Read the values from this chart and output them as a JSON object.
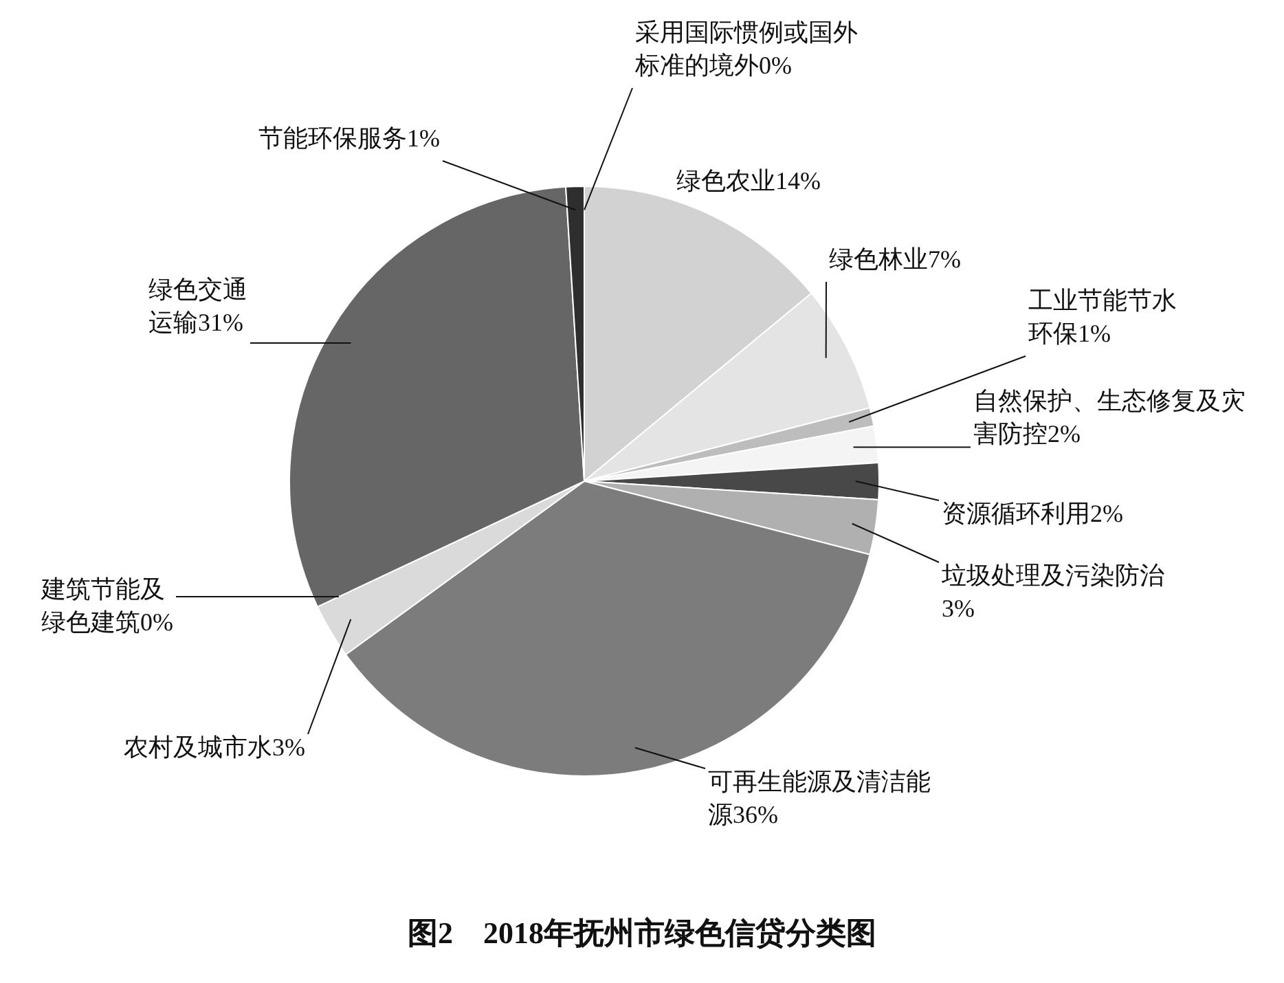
{
  "chart_data": {
    "type": "pie",
    "title": "图2　2018年抚州市绿色信贷分类图",
    "categories": [
      "采用国际惯例或国外标准的境外",
      "绿色农业",
      "绿色林业",
      "工业节能节水环保",
      "自然保护、生态修复及灾害防控",
      "资源循环利用",
      "垃圾处理及污染防治",
      "可再生能源及清洁能源",
      "农村及城市水",
      "建筑节能及绿色建筑",
      "绿色交通运输",
      "节能环保服务"
    ],
    "values": [
      0,
      14,
      7,
      1,
      2,
      2,
      3,
      36,
      3,
      0,
      31,
      1
    ],
    "value_labels": [
      "0%",
      "14%",
      "7%",
      "1%",
      "2%",
      "2%",
      "3%",
      "36%",
      "3%",
      "0%",
      "31%",
      "1%"
    ],
    "colors": [
      "#a0a0a0",
      "#d2d2d2",
      "#e4e4e4",
      "#bdbdbd",
      "#f4f4f4",
      "#484848",
      "#b0b0b0",
      "#7c7c7c",
      "#dadada",
      "#909090",
      "#666666",
      "#2e2e2e"
    ],
    "legend": false
  }
}
